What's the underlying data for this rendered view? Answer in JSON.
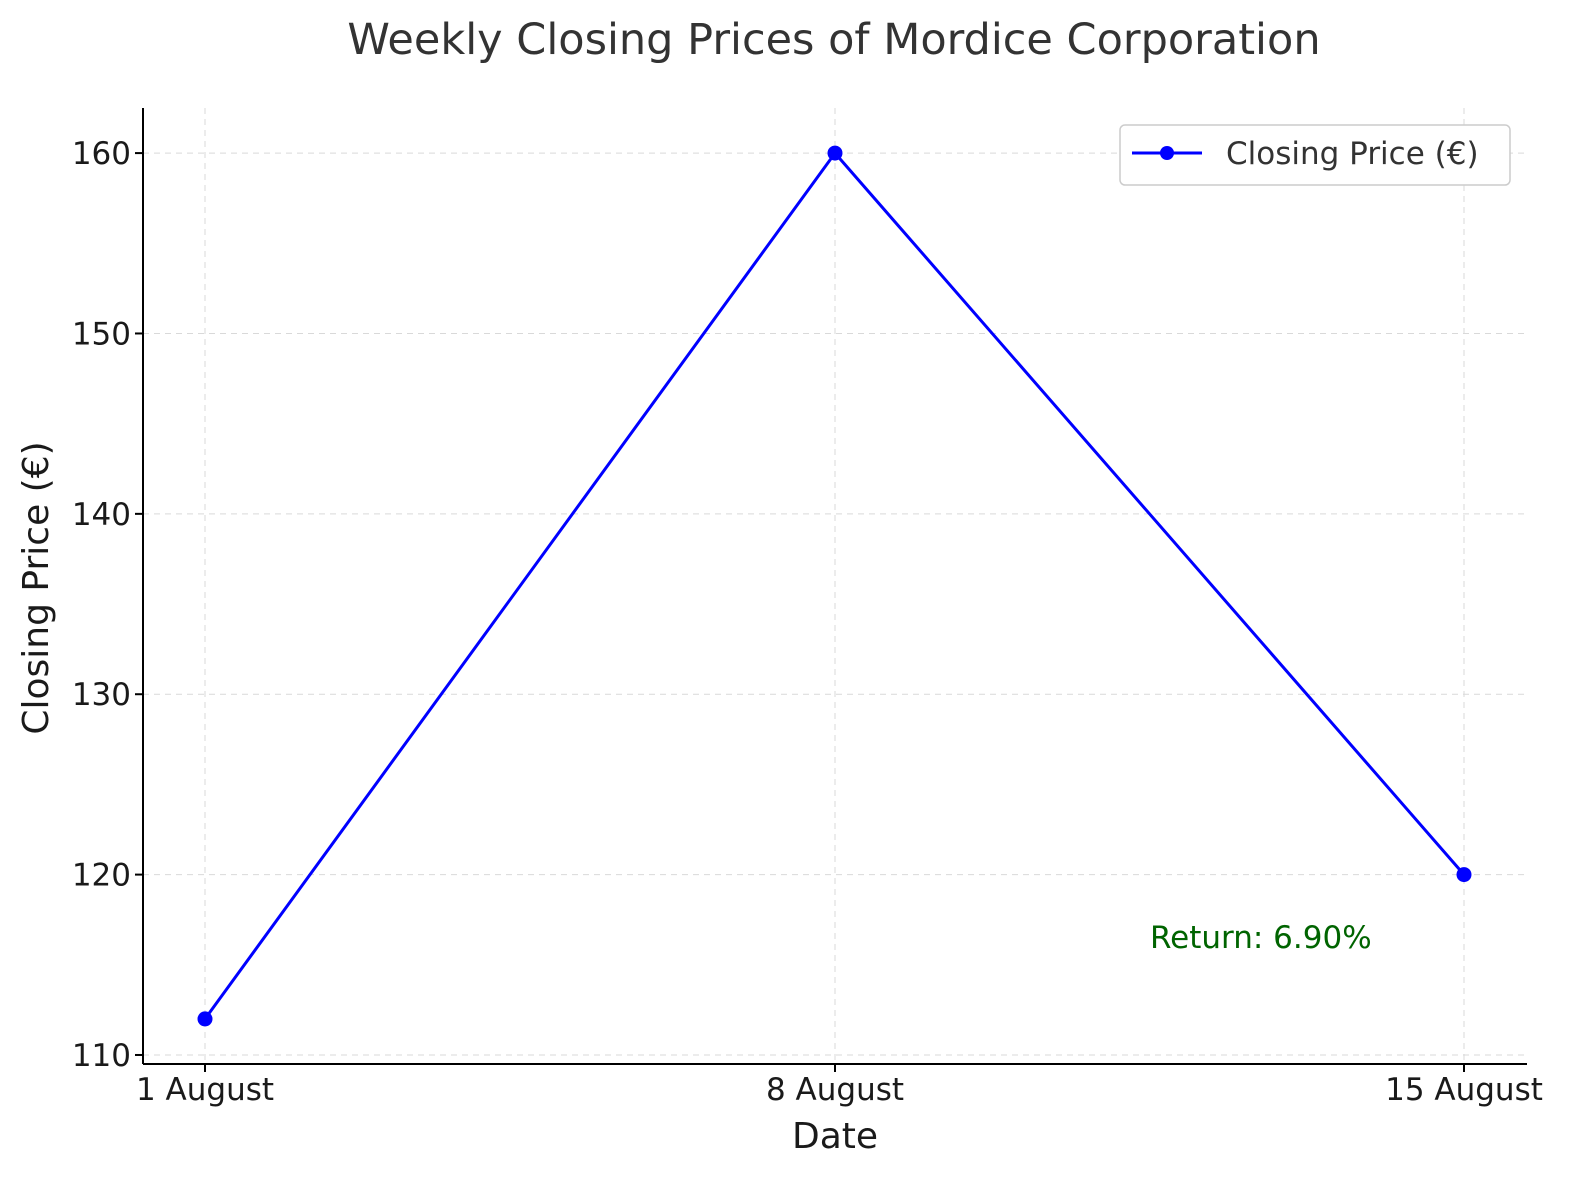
{
  "chart_data": {
    "type": "line",
    "title": "Weekly Closing Prices of Mordice Corporation",
    "xlabel": "Date",
    "ylabel": "Closing Price (€)",
    "categories": [
      "1 August",
      "8 August",
      "15 August"
    ],
    "series": [
      {
        "name": "Closing Price (€)",
        "values": [
          112,
          160,
          120
        ],
        "color": "#0000ff",
        "marker": "circle"
      }
    ],
    "yticks": [
      110,
      120,
      130,
      140,
      150,
      160
    ],
    "ylim": [
      109.5,
      162.5
    ],
    "grid": true,
    "legend_position": "top-right",
    "annotation": {
      "text": "Return: 6.90%",
      "color": "#006400",
      "x_category": "15 August",
      "y": 116.5
    }
  }
}
